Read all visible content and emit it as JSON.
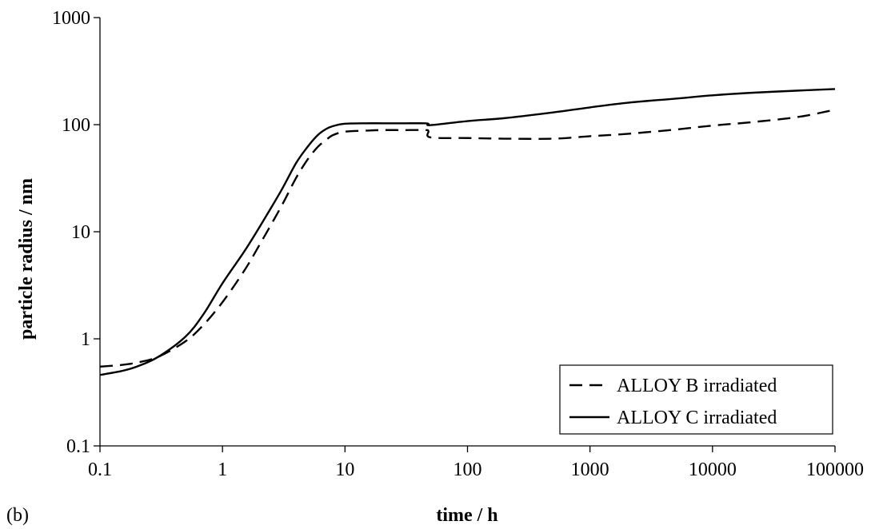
{
  "panel_label": "(b)",
  "chart_data": {
    "type": "line",
    "title": "",
    "xlabel": "time / h",
    "ylabel": "particle radius / nm",
    "xscale": "log",
    "yscale": "log",
    "xlim": [
      0.1,
      100000
    ],
    "ylim": [
      0.1,
      1000
    ],
    "x_ticks": [
      "0.1",
      "1",
      "10",
      "100",
      "1000",
      "10000",
      "100000"
    ],
    "y_ticks": [
      "0.1",
      "1",
      "10",
      "100",
      "1000"
    ],
    "grid": false,
    "legend_position": "bottom-right",
    "series": [
      {
        "name": "ALLOY B irradiated",
        "style": "dashed",
        "color": "#000000",
        "x": [
          0.1,
          0.15,
          0.2,
          0.3,
          0.5,
          0.7,
          1,
          1.5,
          2,
          3,
          4,
          5,
          6,
          7,
          8,
          10,
          15,
          20,
          30,
          45,
          48,
          50,
          100,
          200,
          500,
          1000,
          2000,
          5000,
          10000,
          20000,
          50000,
          100000
        ],
        "y": [
          0.55,
          0.57,
          0.6,
          0.68,
          0.95,
          1.35,
          2.2,
          4.3,
          7.5,
          17,
          32,
          48,
          62,
          72,
          80,
          86,
          88,
          89,
          89,
          89,
          87,
          76,
          75,
          74,
          74,
          78,
          82,
          90,
          98,
          105,
          118,
          138
        ]
      },
      {
        "name": "ALLOY C irradiated",
        "style": "solid",
        "color": "#000000",
        "x": [
          0.1,
          0.15,
          0.2,
          0.3,
          0.5,
          0.7,
          1,
          1.5,
          2,
          3,
          4,
          5,
          6,
          7,
          8,
          10,
          15,
          20,
          30,
          45,
          48,
          50,
          100,
          200,
          500,
          1000,
          2000,
          5000,
          10000,
          20000,
          50000,
          100000
        ],
        "y": [
          0.46,
          0.5,
          0.55,
          0.68,
          1.05,
          1.7,
          3.3,
          6.5,
          11,
          24,
          44,
          63,
          80,
          91,
          97,
          102,
          103,
          103,
          103,
          103,
          102,
          99,
          108,
          115,
          130,
          145,
          160,
          175,
          188,
          198,
          208,
          215
        ]
      }
    ]
  }
}
